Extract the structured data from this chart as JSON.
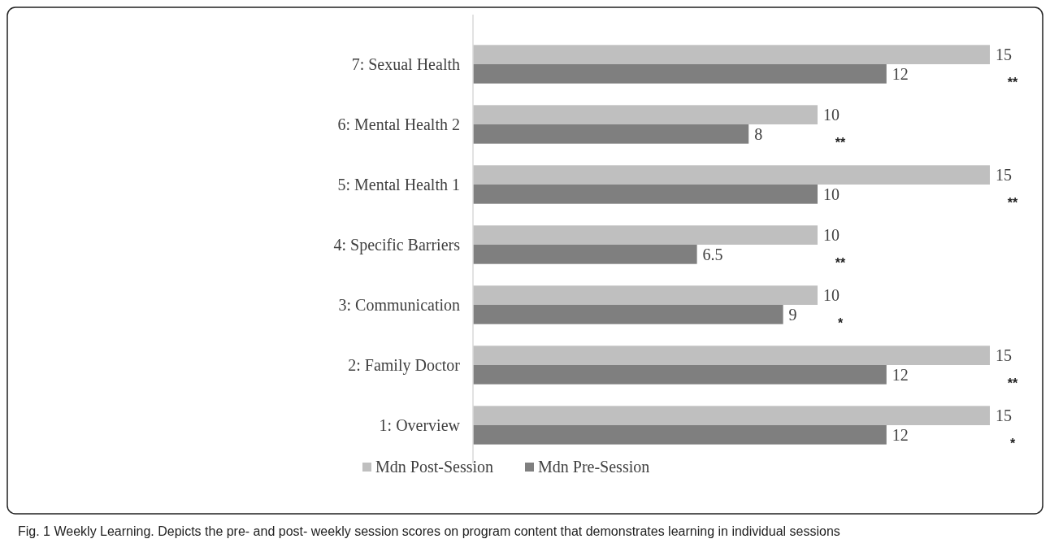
{
  "chart_data": {
    "type": "bar",
    "orientation": "horizontal",
    "categories": [
      "7: Sexual Health",
      "6: Mental Health 2",
      "5: Mental Health 1",
      "4: Specific Barriers",
      "3: Communication",
      "2: Family Doctor",
      "1: Overview"
    ],
    "series": [
      {
        "name": "Mdn Post-Session",
        "color": "#bfbfbf",
        "values": [
          15,
          10,
          15,
          10,
          10,
          15,
          15
        ]
      },
      {
        "name": "Mdn Pre-Session",
        "color": "#7f7f7f",
        "values": [
          12,
          8,
          10,
          6.5,
          9,
          12,
          12
        ]
      }
    ],
    "data_labels": true,
    "legend": "bottom",
    "annotations": [
      "**",
      "**",
      "**",
      "**",
      "*",
      "**",
      "*",
      "Fig. 1 Weekly Learning. Depicts the pre- and post- weekly session scores on program content that demonstrates learning in individual sessions"
    ]
  }
}
